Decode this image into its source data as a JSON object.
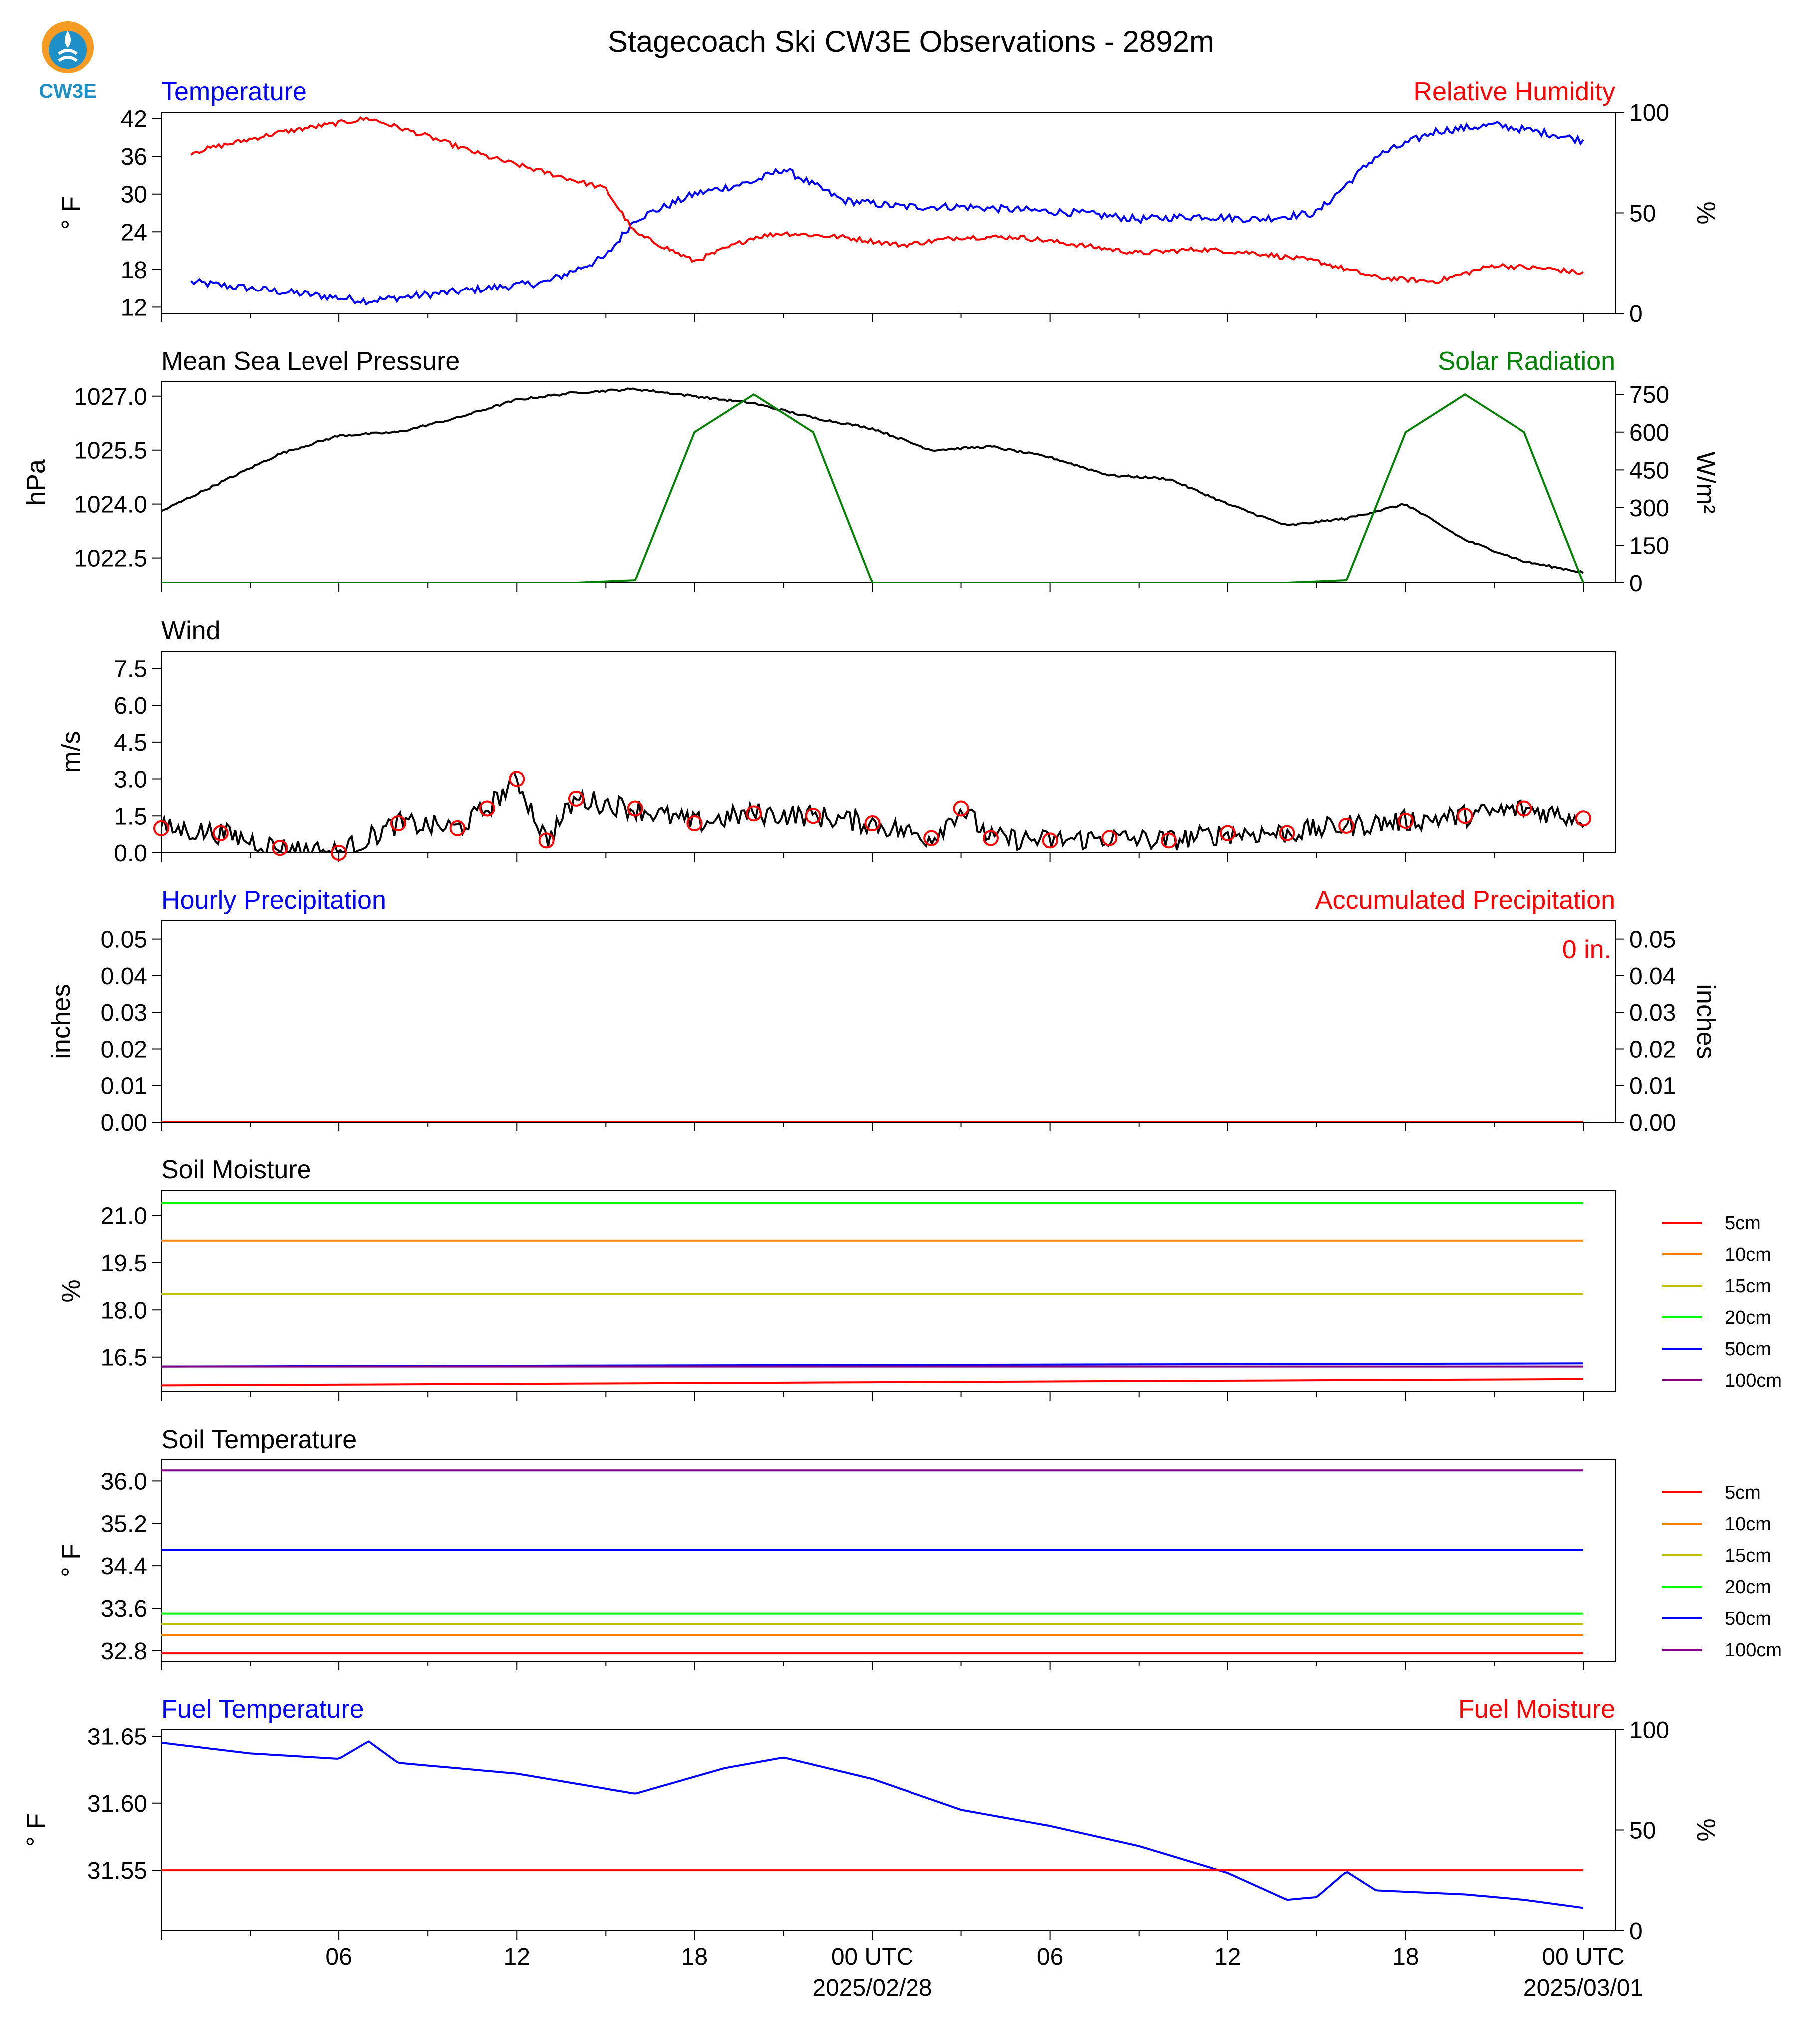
{
  "title": "Stagecoach Ski CW3E Observations - 2892m",
  "logo": {
    "text": "CW3E"
  },
  "colors": {
    "blue": "#0000ff",
    "red": "#ff0000",
    "green": "#008000",
    "black": "#000000",
    "logo": "#1f8fc8",
    "logo_orange": "#f59a23"
  },
  "x_axis": {
    "tick_labels": [
      "06",
      "12",
      "18",
      "00 UTC",
      "06",
      "12",
      "18",
      "00 UTC"
    ],
    "date_labels": [
      "2025/02/28",
      "2025/03/01"
    ]
  },
  "panels": {
    "temperature": {
      "left_title": "Temperature",
      "right_title": "Relative Humidity",
      "ylabel_left": "° F",
      "ylabel_right": "%",
      "yticks_left": [
        "42",
        "36",
        "30",
        "24",
        "18",
        "12"
      ],
      "yticks_right": [
        "100",
        "50",
        "0"
      ]
    },
    "pressure": {
      "left_title": "Mean Sea Level Pressure",
      "right_title": "Solar Radiation",
      "ylabel_left": "hPa",
      "ylabel_right": "W/m²",
      "yticks_left": [
        "1027.0",
        "1025.5",
        "1024.0",
        "1022.5"
      ],
      "yticks_right": [
        "750",
        "600",
        "450",
        "300",
        "150",
        "0"
      ]
    },
    "wind": {
      "left_title": "Wind",
      "ylabel_left": "m/s",
      "yticks_left": [
        "7.5",
        "6.0",
        "4.5",
        "3.0",
        "1.5",
        "0.0"
      ]
    },
    "precip": {
      "left_title": "Hourly Precipitation",
      "right_title": "Accumulated Precipitation",
      "ylabel_left": "inches",
      "ylabel_right": "inches",
      "yticks_left": [
        "0.05",
        "0.04",
        "0.03",
        "0.02",
        "0.01",
        "0.00"
      ],
      "yticks_right": [
        "0.05",
        "0.04",
        "0.03",
        "0.02",
        "0.01",
        "0.00"
      ],
      "annotation": "0 in."
    },
    "soil_moisture": {
      "left_title": "Soil Moisture",
      "ylabel_left": "%",
      "yticks_left": [
        "21.0",
        "19.5",
        "18.0",
        "16.5"
      ]
    },
    "soil_temp": {
      "left_title": "Soil Temperature",
      "ylabel_left": "° F",
      "yticks_left": [
        "36.0",
        "35.2",
        "34.4",
        "33.6",
        "32.8"
      ]
    },
    "fuel": {
      "left_title": "Fuel Temperature",
      "right_title": "Fuel Moisture",
      "ylabel_left": "° F",
      "ylabel_right": "%",
      "yticks_left": [
        "31.65",
        "31.60",
        "31.55"
      ],
      "yticks_right": [
        "100",
        "50",
        "0"
      ]
    }
  },
  "legend": [
    "5cm",
    "10cm",
    "15cm",
    "20cm",
    "50cm",
    "100cm"
  ],
  "legend_colors": [
    "#ff0000",
    "#ff8000",
    "#bfbf00",
    "#00ff00",
    "#0000ff",
    "#800080"
  ],
  "chart_data": [
    {
      "type": "line",
      "title": "Temperature / Relative Humidity",
      "x": [
        "2025-02-27T01",
        "2025-02-27T04",
        "2025-02-27T07",
        "2025-02-27T09",
        "2025-02-27T11",
        "2025-02-27T13",
        "2025-02-27T15",
        "2025-02-27T16",
        "2025-02-27T18",
        "2025-02-27T20",
        "2025-02-27T21",
        "2025-02-27T23",
        "2025-02-28T01",
        "2025-02-28T03",
        "2025-02-28T05",
        "2025-02-28T07",
        "2025-02-28T09",
        "2025-02-28T11",
        "2025-02-28T13",
        "2025-02-28T15",
        "2025-02-28T17",
        "2025-02-28T19",
        "2025-02-28T21",
        "2025-02-28T23",
        "2025-03-01T00"
      ],
      "series": [
        {
          "name": "Temperature",
          "axis": "left",
          "unit": "°F",
          "color": "#0000ff",
          "values": [
            16,
            14.5,
            13,
            14,
            15,
            16,
            20,
            26,
            30,
            32,
            34,
            29,
            28,
            28,
            27.5,
            27,
            26,
            26.5,
            26,
            27,
            36,
            40,
            41,
            39.5,
            38.5
          ]
        },
        {
          "name": "Relative Humidity",
          "axis": "right",
          "unit": "%",
          "color": "#ff0000",
          "values": [
            80,
            90,
            97,
            88,
            78,
            70,
            62,
            40,
            26,
            38,
            40,
            38,
            34,
            38,
            38,
            34,
            30,
            32,
            30,
            26,
            18,
            16,
            24,
            22,
            20
          ]
        }
      ],
      "ylim_left": [
        11,
        43
      ],
      "ylim_right": [
        0,
        100
      ]
    },
    {
      "type": "line",
      "title": "Mean Sea Level Pressure / Solar Radiation",
      "x": [
        "2025-02-27T00",
        "2025-02-27T02",
        "2025-02-27T04",
        "2025-02-27T06",
        "2025-02-27T08",
        "2025-02-27T10",
        "2025-02-27T12",
        "2025-02-27T14",
        "2025-02-27T16",
        "2025-02-27T18",
        "2025-02-27T20",
        "2025-02-27T22",
        "2025-02-28T00",
        "2025-02-28T02",
        "2025-02-28T04",
        "2025-02-28T06",
        "2025-02-28T08",
        "2025-02-28T10",
        "2025-02-28T12",
        "2025-02-28T14",
        "2025-02-28T16",
        "2025-02-28T18",
        "2025-02-28T20",
        "2025-02-28T22",
        "2025-03-01T00"
      ],
      "series": [
        {
          "name": "Mean Sea Level Pressure",
          "axis": "left",
          "unit": "hPa",
          "color": "#000000",
          "values": [
            1023.8,
            1024.6,
            1025.4,
            1025.9,
            1026.0,
            1026.4,
            1026.9,
            1027.1,
            1027.2,
            1027.0,
            1026.8,
            1026.4,
            1026.1,
            1025.5,
            1025.6,
            1025.3,
            1024.8,
            1024.7,
            1024.0,
            1023.4,
            1023.6,
            1024.0,
            1023.0,
            1022.4,
            1022.1
          ]
        },
        {
          "name": "Solar Radiation",
          "axis": "right",
          "unit": "W/m²",
          "color": "#008000",
          "values": [
            0,
            0,
            0,
            0,
            0,
            0,
            0,
            0,
            10,
            600,
            750,
            600,
            0,
            0,
            0,
            0,
            0,
            0,
            0,
            0,
            10,
            600,
            750,
            600,
            0
          ]
        }
      ],
      "ylim_left": [
        1021.8,
        1027.4
      ],
      "ylim_right": [
        0,
        800
      ]
    },
    {
      "type": "line",
      "title": "Wind",
      "x": [
        "2025-02-27T00",
        "2025-02-27T02",
        "2025-02-27T04",
        "2025-02-27T06",
        "2025-02-27T08",
        "2025-02-27T10",
        "2025-02-27T11",
        "2025-02-27T12",
        "2025-02-27T13",
        "2025-02-27T14",
        "2025-02-27T16",
        "2025-02-27T18",
        "2025-02-27T20",
        "2025-02-27T22",
        "2025-02-28T00",
        "2025-02-28T02",
        "2025-02-28T03",
        "2025-02-28T04",
        "2025-02-28T06",
        "2025-02-28T08",
        "2025-02-28T10",
        "2025-02-28T12",
        "2025-02-28T14",
        "2025-02-28T16",
        "2025-02-28T18",
        "2025-02-28T20",
        "2025-02-28T22",
        "2025-03-01T00"
      ],
      "series": [
        {
          "name": "Wind",
          "unit": "m/s",
          "color": "#000000",
          "values": [
            1.0,
            0.8,
            0.2,
            0.0,
            1.2,
            1.0,
            1.8,
            3.0,
            0.5,
            2.2,
            1.8,
            1.2,
            1.6,
            1.5,
            1.2,
            0.6,
            1.8,
            0.6,
            0.5,
            0.6,
            0.5,
            0.8,
            0.8,
            1.1,
            1.3,
            1.5,
            1.8,
            1.4
          ]
        }
      ],
      "ylim": [
        0,
        8.2
      ]
    },
    {
      "type": "line",
      "title": "Hourly Precipitation / Accumulated Precipitation",
      "x": [
        "2025-02-27T00",
        "2025-03-01T00"
      ],
      "series": [
        {
          "name": "Hourly Precipitation",
          "axis": "left",
          "unit": "inches",
          "color": "#0000ff",
          "values": [
            0.0,
            0.0
          ]
        },
        {
          "name": "Accumulated Precipitation",
          "axis": "right",
          "unit": "inches",
          "color": "#ff0000",
          "values": [
            0.0,
            0.0
          ]
        }
      ],
      "ylim_left": [
        0,
        0.055
      ],
      "ylim_right": [
        0,
        0.055
      ]
    },
    {
      "type": "line",
      "title": "Soil Moisture",
      "x": [
        "2025-02-27T00",
        "2025-03-01T00"
      ],
      "series": [
        {
          "name": "5cm",
          "color": "#ff0000",
          "values": [
            15.6,
            15.8
          ]
        },
        {
          "name": "10cm",
          "color": "#ff8000",
          "values": [
            20.2,
            20.2
          ]
        },
        {
          "name": "15cm",
          "color": "#bfbf00",
          "values": [
            18.5,
            18.5
          ]
        },
        {
          "name": "20cm",
          "color": "#00ff00",
          "values": [
            21.4,
            21.4
          ]
        },
        {
          "name": "50cm",
          "color": "#0000ff",
          "values": [
            16.2,
            16.3
          ]
        },
        {
          "name": "100cm",
          "color": "#800080",
          "values": [
            16.2,
            16.2
          ]
        }
      ],
      "ylim": [
        15.4,
        21.8
      ]
    },
    {
      "type": "line",
      "title": "Soil Temperature",
      "x": [
        "2025-02-27T00",
        "2025-03-01T00"
      ],
      "series": [
        {
          "name": "5cm",
          "color": "#ff0000",
          "values": [
            32.75,
            32.75
          ]
        },
        {
          "name": "10cm",
          "color": "#ff8000",
          "values": [
            33.1,
            33.1
          ]
        },
        {
          "name": "15cm",
          "color": "#bfbf00",
          "values": [
            33.3,
            33.3
          ]
        },
        {
          "name": "20cm",
          "color": "#00ff00",
          "values": [
            33.5,
            33.5
          ]
        },
        {
          "name": "50cm",
          "color": "#0000ff",
          "values": [
            34.7,
            34.7
          ]
        },
        {
          "name": "100cm",
          "color": "#800080",
          "values": [
            36.2,
            36.2
          ]
        }
      ],
      "ylim": [
        32.6,
        36.4
      ]
    },
    {
      "type": "line",
      "title": "Fuel Temperature / Fuel Moisture",
      "x": [
        "2025-02-27T00",
        "2025-02-27T03",
        "2025-02-27T06",
        "2025-02-27T07",
        "2025-02-27T08",
        "2025-02-27T12",
        "2025-02-27T16",
        "2025-02-27T19",
        "2025-02-27T21",
        "2025-02-28T00",
        "2025-02-28T03",
        "2025-02-28T06",
        "2025-02-28T09",
        "2025-02-28T12",
        "2025-02-28T14",
        "2025-02-28T15",
        "2025-02-28T16",
        "2025-02-28T17",
        "2025-02-28T20",
        "2025-02-28T22",
        "2025-03-01T00"
      ],
      "series": [
        {
          "name": "Fuel Temperature",
          "axis": "left",
          "unit": "°F",
          "color": "#0000ff",
          "values": [
            31.645,
            31.637,
            31.633,
            31.646,
            31.63,
            31.622,
            31.607,
            31.626,
            31.634,
            31.618,
            31.595,
            31.583,
            31.568,
            31.548,
            31.528,
            31.53,
            31.549,
            31.535,
            31.532,
            31.528,
            31.522
          ]
        },
        {
          "name": "Fuel Moisture",
          "axis": "right",
          "unit": "%",
          "color": "#ff0000",
          "values": [
            30,
            30,
            30,
            30,
            30,
            30,
            30,
            30,
            30,
            30,
            30,
            30,
            30,
            30,
            30,
            30,
            30,
            30,
            30,
            30,
            30
          ]
        }
      ],
      "ylim_left": [
        31.505,
        31.655
      ],
      "ylim_right": [
        0,
        100
      ]
    }
  ]
}
